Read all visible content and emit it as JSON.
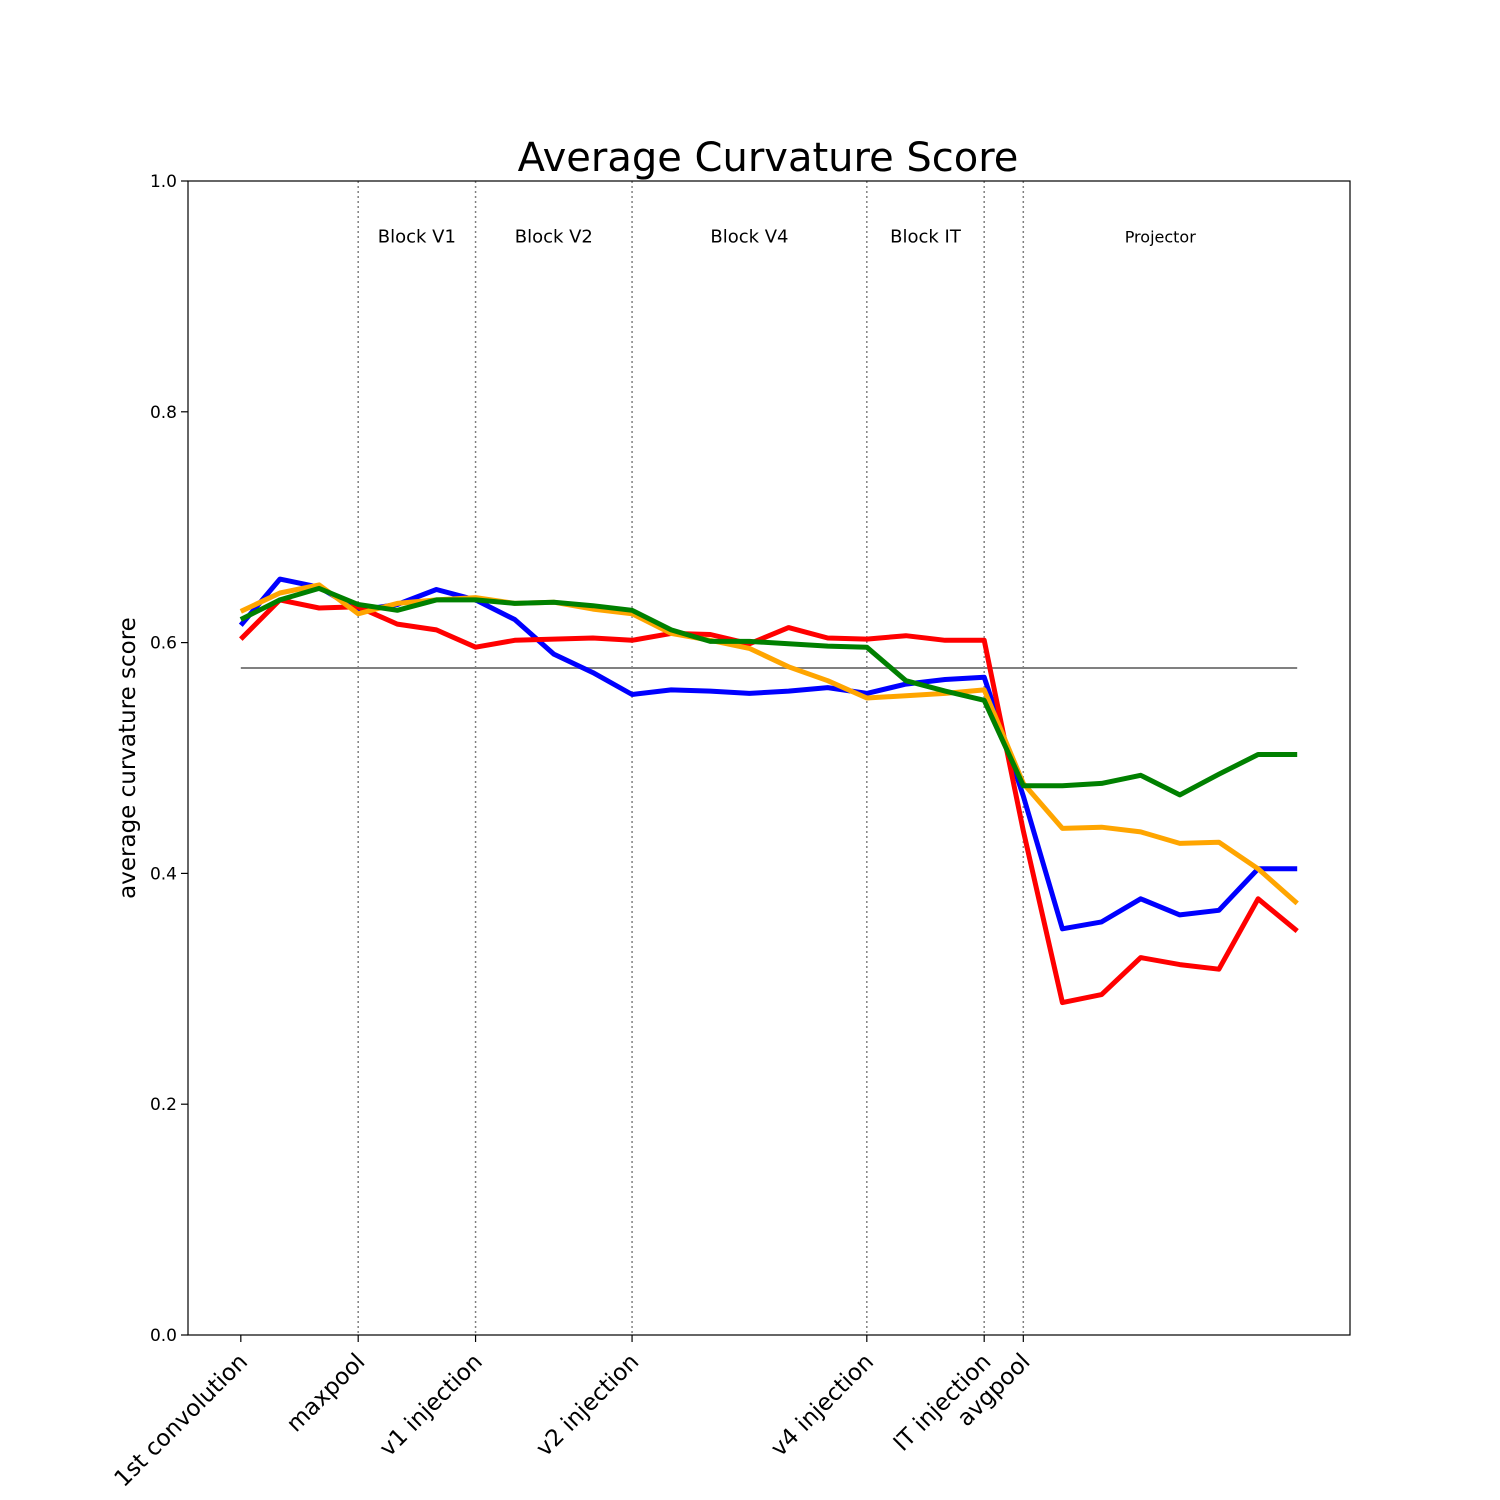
{
  "chart_data": {
    "type": "line",
    "title": "Average Curvature Score",
    "xlabel": "",
    "ylabel": "average curvature score",
    "ylim": [
      0,
      1.0
    ],
    "xlim": [
      -1.35,
      28.35
    ],
    "yticks": [
      {
        "value": 0.0,
        "label": "0.0"
      },
      {
        "value": 0.2,
        "label": "0.2"
      },
      {
        "value": 0.4,
        "label": "0.4"
      },
      {
        "value": 0.6,
        "label": "0.6"
      },
      {
        "value": 0.8,
        "label": "0.8"
      },
      {
        "value": 1.0,
        "label": "1.0"
      }
    ],
    "xticks": [
      {
        "x": 0,
        "label": "1st convolution"
      },
      {
        "x": 3,
        "label": "maxpool"
      },
      {
        "x": 6,
        "label": "v1 injection"
      },
      {
        "x": 10,
        "label": "v2 injection"
      },
      {
        "x": 16,
        "label": "v4 injection"
      },
      {
        "x": 19,
        "label": "IT injection"
      },
      {
        "x": 20,
        "label": "avgpool"
      }
    ],
    "dividers": [
      3,
      6,
      10,
      16,
      19,
      20
    ],
    "sections": [
      {
        "label": "Block V1",
        "x": 4.5
      },
      {
        "label": "Block V2",
        "x": 8
      },
      {
        "label": "Block V4",
        "x": 13
      },
      {
        "label": "Block IT",
        "x": 17.5
      },
      {
        "label": "Projector",
        "x": 23.5
      }
    ],
    "section_label_y": 0.952,
    "reference_line": {
      "value": 0.578,
      "x_start": 0,
      "x_end": 27,
      "color": "#808080"
    },
    "grid": false,
    "series": [
      {
        "color": "#0000ff",
        "x": [
          0,
          1,
          2,
          3,
          4,
          5,
          6,
          7,
          8,
          9,
          10,
          11,
          12,
          13,
          14,
          15,
          16,
          17,
          18,
          19,
          20,
          21,
          22,
          23,
          24,
          25,
          26,
          27
        ],
        "values": [
          0.615,
          0.655,
          0.648,
          0.628,
          0.633,
          0.646,
          0.637,
          0.62,
          0.59,
          0.574,
          0.555,
          0.559,
          0.558,
          0.556,
          0.558,
          0.561,
          0.556,
          0.564,
          0.568,
          0.57,
          0.467,
          0.352,
          0.358,
          0.378,
          0.364,
          0.368,
          0.404,
          0.404
        ]
      },
      {
        "color": "#ff0000",
        "x": [
          0,
          1,
          2,
          3,
          4,
          5,
          6,
          7,
          8,
          9,
          10,
          11,
          12,
          13,
          14,
          15,
          16,
          17,
          18,
          19,
          20,
          21,
          22,
          23,
          24,
          25,
          26,
          27
        ],
        "values": [
          0.603,
          0.637,
          0.63,
          0.631,
          0.616,
          0.611,
          0.596,
          0.602,
          0.603,
          0.604,
          0.602,
          0.608,
          0.607,
          0.599,
          0.613,
          0.604,
          0.603,
          0.606,
          0.602,
          0.602,
          0.437,
          0.288,
          0.295,
          0.327,
          0.321,
          0.317,
          0.378,
          0.35
        ]
      },
      {
        "color": "#ffa500",
        "x": [
          0,
          1,
          2,
          3,
          4,
          5,
          6,
          7,
          8,
          9,
          10,
          11,
          12,
          13,
          14,
          15,
          16,
          17,
          18,
          19,
          20,
          21,
          22,
          23,
          24,
          25,
          26,
          27
        ],
        "values": [
          0.627,
          0.643,
          0.65,
          0.625,
          0.634,
          0.637,
          0.639,
          0.634,
          0.635,
          0.629,
          0.625,
          0.608,
          0.602,
          0.595,
          0.579,
          0.567,
          0.552,
          0.554,
          0.556,
          0.559,
          0.478,
          0.439,
          0.44,
          0.436,
          0.426,
          0.427,
          0.404,
          0.374
        ]
      },
      {
        "color": "#008000",
        "x": [
          0,
          1,
          2,
          3,
          4,
          5,
          6,
          7,
          8,
          9,
          10,
          11,
          12,
          13,
          14,
          15,
          16,
          17,
          18,
          19,
          20,
          21,
          22,
          23,
          24,
          25,
          26,
          27
        ],
        "values": [
          0.62,
          0.637,
          0.647,
          0.633,
          0.628,
          0.637,
          0.637,
          0.634,
          0.635,
          0.632,
          0.628,
          0.611,
          0.601,
          0.601,
          0.599,
          0.597,
          0.596,
          0.567,
          0.558,
          0.55,
          0.476,
          0.476,
          0.478,
          0.485,
          0.468,
          0.486,
          0.503,
          0.503
        ]
      }
    ]
  }
}
